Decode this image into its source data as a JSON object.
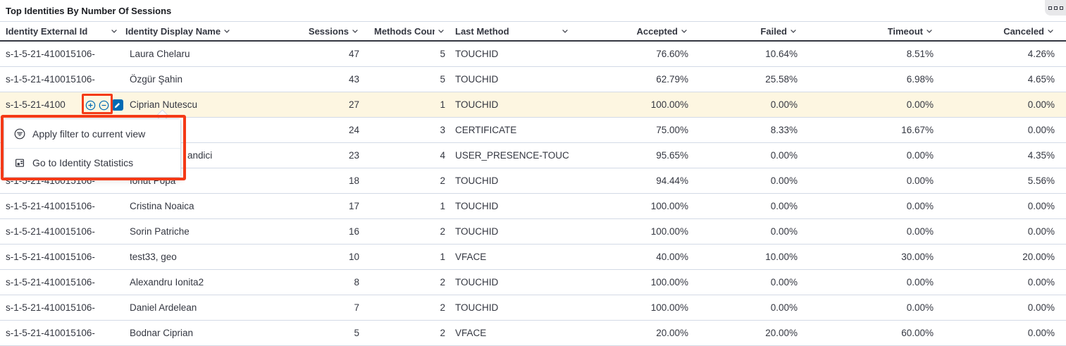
{
  "panel": {
    "title": "Top Identities By Number Of Sessions",
    "options_icon": "panel-options-icon"
  },
  "table": {
    "columns": [
      {
        "label": "Identity External Id",
        "align": "left",
        "sortable_icon": "chevron-down-icon"
      },
      {
        "label": "Identity Display Name",
        "align": "left",
        "sortable_icon": "chevron-down-icon"
      },
      {
        "label": "Sessions",
        "align": "right",
        "sortable_icon": "chevron-down-icon"
      },
      {
        "label": "Methods Count",
        "align": "right",
        "sortable_icon": "chevron-down-icon"
      },
      {
        "label": "Last Method",
        "align": "left",
        "sortable_icon": "chevron-down-icon"
      },
      {
        "label": "Accepted",
        "align": "right",
        "sortable_icon": "chevron-down-icon"
      },
      {
        "label": "Failed",
        "align": "right",
        "sortable_icon": "chevron-down-icon"
      },
      {
        "label": "Timeout",
        "align": "right",
        "sortable_icon": "chevron-down-icon"
      },
      {
        "label": "Canceled",
        "align": "right",
        "sortable_icon": "chevron-down-icon"
      }
    ],
    "rows": [
      {
        "cells": [
          "s-1-5-21-410015106-",
          "Laura Chelaru",
          "47",
          "5",
          "TOUCHID",
          "76.60%",
          "10.64%",
          "8.51%",
          "4.26%"
        ]
      },
      {
        "cells": [
          "s-1-5-21-410015106-",
          "Özgür Şahin",
          "43",
          "5",
          "TOUCHID",
          "62.79%",
          "25.58%",
          "6.98%",
          "4.65%"
        ]
      },
      {
        "cells": [
          "s-1-5-21-4100",
          "Ciprian Nutescu",
          "27",
          "1",
          "TOUCHID",
          "100.00%",
          "0.00%",
          "0.00%",
          "0.00%"
        ],
        "state": "highlighted"
      },
      {
        "cells": [
          "",
          "",
          "24",
          "3",
          "CERTIFICATE",
          "75.00%",
          "8.33%",
          "16.67%",
          "0.00%"
        ],
        "state": "covered"
      },
      {
        "cells": [
          "",
          "andici",
          "23",
          "4",
          "USER_PRESENCE-TOUC",
          "95.65%",
          "0.00%",
          "0.00%",
          "4.35%"
        ],
        "state": "partially-covered"
      },
      {
        "cells": [
          "s-1-5-21-410015106-",
          "Ionut Popa",
          "18",
          "2",
          "TOUCHID",
          "94.44%",
          "0.00%",
          "0.00%",
          "5.56%"
        ]
      },
      {
        "cells": [
          "s-1-5-21-410015106-",
          "Cristina Noaica",
          "17",
          "1",
          "TOUCHID",
          "100.00%",
          "0.00%",
          "0.00%",
          "0.00%"
        ]
      },
      {
        "cells": [
          "s-1-5-21-410015106-",
          "Sorin Patriche",
          "16",
          "2",
          "TOUCHID",
          "100.00%",
          "0.00%",
          "0.00%",
          "0.00%"
        ]
      },
      {
        "cells": [
          "s-1-5-21-410015106-",
          "test33, geo",
          "10",
          "1",
          "VFACE",
          "40.00%",
          "10.00%",
          "30.00%",
          "20.00%"
        ]
      },
      {
        "cells": [
          "s-1-5-21-410015106-",
          "Alexandru Ionita2",
          "8",
          "2",
          "TOUCHID",
          "100.00%",
          "0.00%",
          "0.00%",
          "0.00%"
        ]
      },
      {
        "cells": [
          "s-1-5-21-410015106-",
          "Daniel Ardelean",
          "7",
          "2",
          "TOUCHID",
          "100.00%",
          "0.00%",
          "0.00%",
          "0.00%"
        ]
      },
      {
        "cells": [
          "s-1-5-21-410015106-",
          "Bodnar Ciprian",
          "5",
          "2",
          "VFACE",
          "20.00%",
          "20.00%",
          "60.00%",
          "0.00%"
        ]
      }
    ]
  },
  "row_actions": {
    "filter_for_icon": "plus-in-circle-icon",
    "filter_out_icon": "minus-in-circle-icon",
    "edit_icon": "pencil-icon"
  },
  "context_menu": {
    "items": [
      {
        "icon": "filter-circle-icon",
        "label": "Apply filter to current view"
      },
      {
        "icon": "statistics-table-icon",
        "label": "Go to Identity Statistics"
      }
    ]
  },
  "colors": {
    "annotation_red": "#F43A17",
    "highlight_row_bg": "#FDF6E1",
    "primary_blue": "#006BB4",
    "header_rule": "#343741",
    "row_border": "#D3DAE6"
  }
}
